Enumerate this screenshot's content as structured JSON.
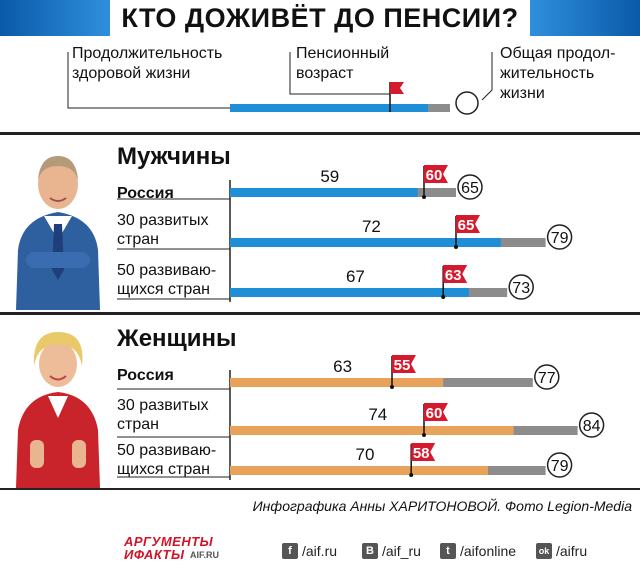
{
  "header": {
    "title": "КТО ДОЖИВЁТ ДО ПЕНСИИ?"
  },
  "legend": {
    "healthy": "Продолжительность здоровой жизни",
    "healthy_l1": "Продолжительность",
    "healthy_l2": "здоровой жизни",
    "pension_l1": "Пенсионный",
    "pension_l2": "возраст",
    "total_l1": "Общая продол-",
    "total_l2": "жительность",
    "total_l3": "жизни"
  },
  "sections": {
    "men": {
      "title": "Мужчины"
    },
    "women": {
      "title": "Женщины"
    }
  },
  "labels": {
    "russia": "Россия",
    "dev_l1": "30 развитых",
    "dev_l2": "стран",
    "devg_l1": "50 развиваю-",
    "devg_l2": "щихся стран"
  },
  "chart_data": [
    {
      "type": "bar",
      "group": "Мужчины",
      "categories": [
        "Россия",
        "30 развитых стран",
        "50 развивающихся стран"
      ],
      "series": [
        {
          "name": "Продолжительность здоровой жизни",
          "values": [
            59,
            72,
            67
          ]
        },
        {
          "name": "Пенсионный возраст",
          "values": [
            60,
            65,
            63
          ]
        },
        {
          "name": "Общая продолжительность жизни",
          "values": [
            65,
            79,
            73
          ]
        }
      ]
    },
    {
      "type": "bar",
      "group": "Женщины",
      "categories": [
        "Россия",
        "30 развитых стран",
        "50 развивающихся стран"
      ],
      "series": [
        {
          "name": "Продолжительность здоровой жизни",
          "values": [
            63,
            74,
            70
          ]
        },
        {
          "name": "Пенсионный возраст",
          "values": [
            55,
            60,
            58
          ]
        },
        {
          "name": "Общая продолжительность жизни",
          "values": [
            77,
            84,
            79
          ]
        }
      ]
    }
  ],
  "colors": {
    "men_bar": "#1e8fd6",
    "women_bar": "#e8a25a",
    "gray": "#8c8c8c",
    "flag": "#d51a2e"
  },
  "credit": "Инфографика Анны ХАРИТОНОВОЙ. Фото Legion-Media",
  "footer": {
    "logo_l1": "АРГУМЕНТЫ",
    "logo_l2": "ИФАКТЫ",
    "logo_url": "AIF.RU",
    "social": [
      {
        "icon": "facebook-icon",
        "glyph": "f",
        "text": "/aif.ru"
      },
      {
        "icon": "vk-icon",
        "glyph": "B",
        "text": "/aif_ru"
      },
      {
        "icon": "twitter-icon",
        "glyph": "t",
        "text": "/aifonline"
      },
      {
        "icon": "odnoklassniki-icon",
        "glyph": "ok",
        "text": "/aifru"
      }
    ]
  }
}
